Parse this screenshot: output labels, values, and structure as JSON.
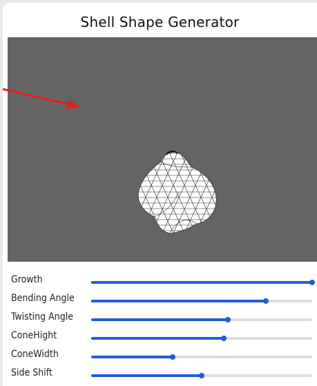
{
  "app": {
    "title": "Shell Shape Generator"
  },
  "viewport": {
    "background": "#646464",
    "model": "shell-wireframe"
  },
  "annotation": {
    "arrow_color": "#e0201b"
  },
  "accent_color": "#1f5fd6",
  "sliders": [
    {
      "label": "Growth",
      "value": 1.0
    },
    {
      "label": "Bending Angle",
      "value": 0.79
    },
    {
      "label": "Twisting Angle",
      "value": 0.62
    },
    {
      "label": "ConeHight",
      "value": 0.6
    },
    {
      "label": "ConeWidth",
      "value": 0.37
    },
    {
      "label": "Side Shift",
      "value": 0.5
    }
  ]
}
